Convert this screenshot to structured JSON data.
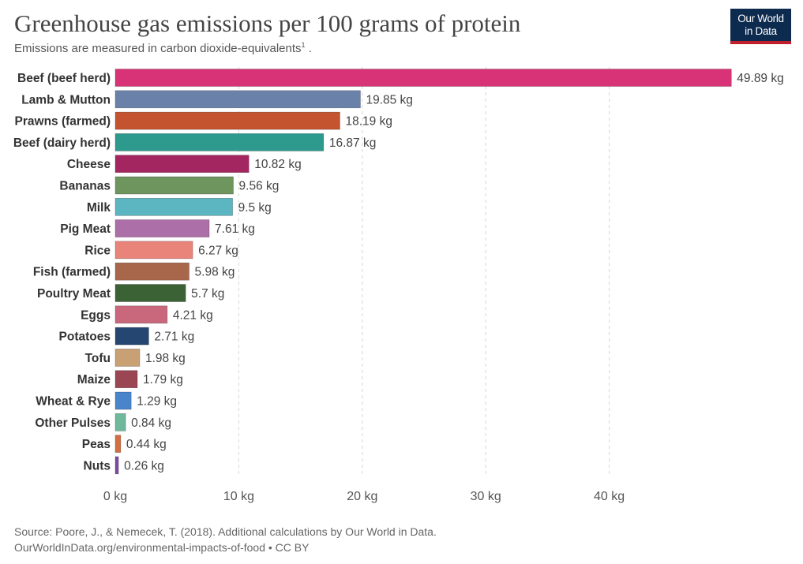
{
  "header": {
    "title": "Greenhouse gas emissions per 100 grams of protein",
    "subtitle": "Emissions are measured in carbon dioxide-equivalents",
    "subtitle_footnote": "1",
    "subtitle_end": " ."
  },
  "logo": {
    "line1": "Our World",
    "line2": "in Data",
    "bg_color": "#0d2a4f",
    "accent_color": "#c0202e"
  },
  "footer": {
    "source": "Source: Poore, J., & Nemecek, T. (2018). Additional calculations by Our World in Data.",
    "url": "OurWorldInData.org/environmental-impacts-of-food",
    "license": " • CC BY"
  },
  "chart_data": {
    "type": "bar",
    "orientation": "horizontal",
    "unit_suffix": " kg",
    "xlim": [
      0,
      50
    ],
    "xticks": [
      0,
      10,
      20,
      30,
      40
    ],
    "xtick_labels": [
      "0 kg",
      "10 kg",
      "20 kg",
      "30 kg",
      "40 kg"
    ],
    "grid": true,
    "categories": [
      "Beef (beef herd)",
      "Lamb & Mutton",
      "Prawns (farmed)",
      "Beef (dairy herd)",
      "Cheese",
      "Bananas",
      "Milk",
      "Pig Meat",
      "Rice",
      "Fish (farmed)",
      "Poultry Meat",
      "Eggs",
      "Potatoes",
      "Tofu",
      "Maize",
      "Wheat & Rye",
      "Other Pulses",
      "Peas",
      "Nuts"
    ],
    "values": [
      49.89,
      19.85,
      18.19,
      16.87,
      10.82,
      9.56,
      9.5,
      7.61,
      6.27,
      5.98,
      5.7,
      4.21,
      2.71,
      1.98,
      1.79,
      1.29,
      0.84,
      0.44,
      0.26
    ],
    "value_labels": [
      "49.89 kg",
      "19.85 kg",
      "18.19 kg",
      "16.87 kg",
      "10.82 kg",
      "9.56 kg",
      "9.5 kg",
      "7.61 kg",
      "6.27 kg",
      "5.98 kg",
      "5.7 kg",
      "4.21 kg",
      "2.71 kg",
      "1.98 kg",
      "1.79 kg",
      "1.29 kg",
      "0.84 kg",
      "0.44 kg",
      "0.26 kg"
    ],
    "colors": [
      "#d73376",
      "#6a82aa",
      "#c4532f",
      "#2e9a8e",
      "#a42660",
      "#6f955f",
      "#5cb6c2",
      "#ac6fa8",
      "#e9847a",
      "#a8674b",
      "#3b6234",
      "#c9687c",
      "#264672",
      "#c9a074",
      "#9a4653",
      "#4a84cb",
      "#6fb89c",
      "#d36f42",
      "#7d4ca1"
    ]
  }
}
